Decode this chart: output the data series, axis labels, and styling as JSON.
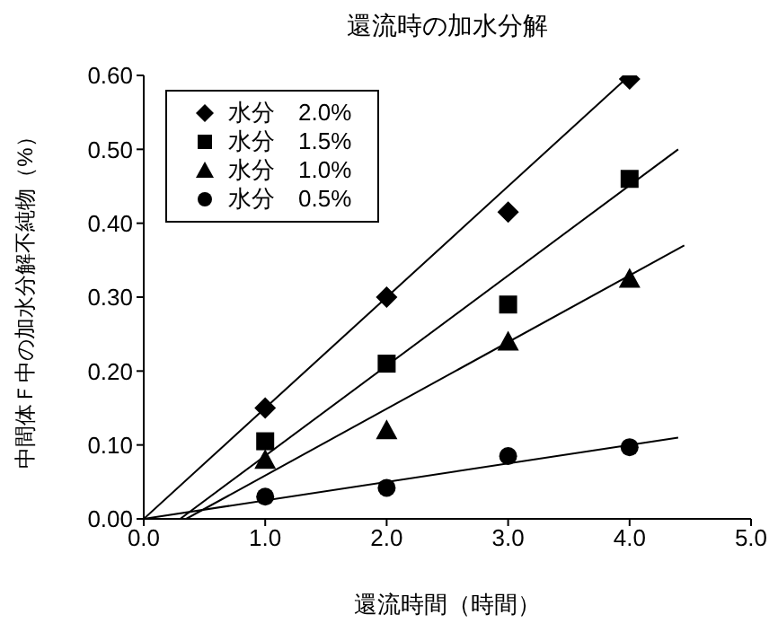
{
  "chart_data": {
    "type": "scatter",
    "title": "還流時の加水分解",
    "xlabel": "還流時間（時間）",
    "ylabel": "中間体Ｆ中の加水分解不純物（%）",
    "x": [
      1,
      2,
      3,
      4
    ],
    "xlim": [
      0,
      5
    ],
    "xticks": [
      {
        "value": 0,
        "label": "0.0"
      },
      {
        "value": 1,
        "label": "1.0"
      },
      {
        "value": 2,
        "label": "2.0"
      },
      {
        "value": 3,
        "label": "3.0"
      },
      {
        "value": 4,
        "label": "4.0"
      },
      {
        "value": 5,
        "label": "5.0"
      }
    ],
    "ylim": [
      0,
      0.6
    ],
    "yticks": [
      {
        "value": 0,
        "label": "0.00"
      },
      {
        "value": 0.1,
        "label": "0.10"
      },
      {
        "value": 0.2,
        "label": "0.20"
      },
      {
        "value": 0.3,
        "label": "0.30"
      },
      {
        "value": 0.4,
        "label": "0.40"
      },
      {
        "value": 0.5,
        "label": "0.50"
      },
      {
        "value": 0.6,
        "label": "0.60"
      }
    ],
    "legend": "top left",
    "series": [
      {
        "name": "水分　2.0%",
        "color": "#000000",
        "marker": "diamond",
        "values": [
          0.15,
          0.3,
          0.415,
          0.595
        ]
      },
      {
        "name": "水分　1.5%",
        "color": "#000000",
        "marker": "square",
        "values": [
          0.105,
          0.21,
          0.29,
          0.46
        ]
      },
      {
        "name": "水分　1.0%",
        "color": "#000000",
        "marker": "triangle",
        "values": [
          0.08,
          0.12,
          0.24,
          0.325
        ]
      },
      {
        "name": "水分　0.5%",
        "color": "#000000",
        "marker": "circle",
        "values": [
          0.03,
          0.042,
          0.085,
          0.097
        ]
      },
      {
        "type": "line",
        "color": "#000000",
        "marker": "none",
        "line_style": "solid",
        "x": [
          0,
          4
        ],
        "values": [
          0,
          0.6
        ]
      },
      {
        "type": "line",
        "color": "#000000",
        "marker": "none",
        "line_style": "solid",
        "x": [
          0.3,
          4.4
        ],
        "values": [
          0,
          0.5
        ]
      },
      {
        "type": "line",
        "color": "#000000",
        "marker": "none",
        "line_style": "solid",
        "x": [
          0.35,
          4.45
        ],
        "values": [
          0,
          0.37
        ]
      },
      {
        "type": "line",
        "color": "#000000",
        "marker": "none",
        "line_style": "solid",
        "x": [
          0,
          4.4
        ],
        "values": [
          0,
          0.11
        ]
      }
    ]
  }
}
